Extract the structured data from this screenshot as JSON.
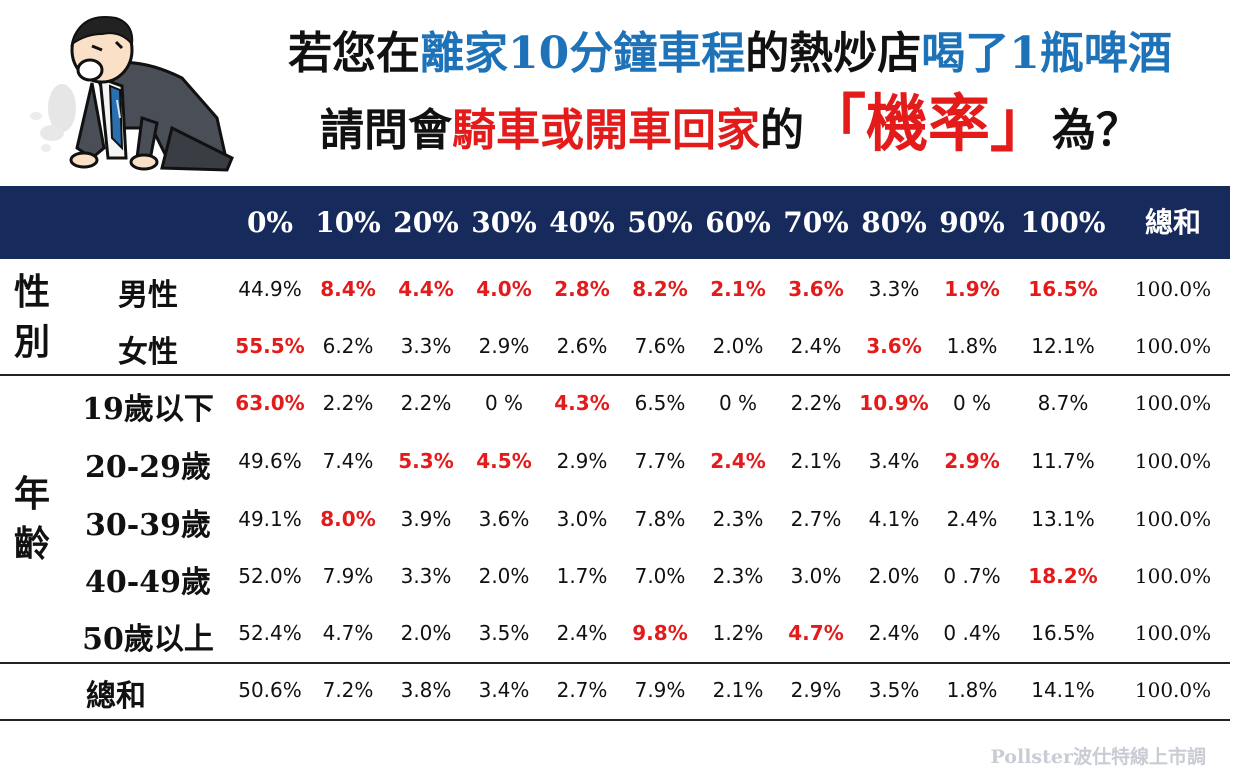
{
  "title": {
    "line1": [
      {
        "t": "若您在",
        "c": ""
      },
      {
        "t": "離家10分鐘車程",
        "c": "blue"
      },
      {
        "t": "的熱炒店",
        "c": ""
      },
      {
        "t": "喝了1瓶啤酒",
        "c": "blue"
      }
    ],
    "line2": [
      {
        "t": "請問會",
        "c": ""
      },
      {
        "t": "騎車或開車回家",
        "c": "red"
      },
      {
        "t": "的",
        "c": ""
      },
      {
        "t": "「機率」",
        "c": "red big"
      },
      {
        "t": "為？",
        "c": ""
      }
    ]
  },
  "colors": {
    "header_bg": "#162a5c",
    "highlight": "#e31b1b",
    "accent_blue": "#1e72b8"
  },
  "chart_data": {
    "type": "table",
    "columns": [
      "0%",
      "10%",
      "20%",
      "30%",
      "40%",
      "50%",
      "60%",
      "70%",
      "80%",
      "90%",
      "100%",
      "總和"
    ],
    "groups": [
      {
        "label": "性別",
        "rows": [
          0,
          1
        ]
      },
      {
        "label": "年齡",
        "rows": [
          2,
          3,
          4,
          5,
          6
        ]
      },
      {
        "label": "",
        "rows": [
          7
        ]
      }
    ],
    "rows": [
      {
        "label": "男性",
        "values": [
          "44.9%",
          "8.4%",
          "4.4%",
          "4.0%",
          "2.8%",
          "8.2%",
          "2.1%",
          "3.6%",
          "3.3%",
          "1.9%",
          "16.5%",
          "100.0%"
        ],
        "highlight": [
          1,
          2,
          3,
          4,
          5,
          6,
          7,
          9,
          10
        ]
      },
      {
        "label": "女性",
        "values": [
          "55.5%",
          "6.2%",
          "3.3%",
          "2.9%",
          "2.6%",
          "7.6%",
          "2.0%",
          "2.4%",
          "3.6%",
          "1.8%",
          "12.1%",
          "100.0%"
        ],
        "highlight": [
          0,
          8
        ]
      },
      {
        "label": "19歲以下",
        "values": [
          "63.0%",
          "2.2%",
          "2.2%",
          "0 %",
          "4.3%",
          "6.5%",
          "0 %",
          "2.2%",
          "10.9%",
          "0 %",
          "8.7%",
          "100.0%"
        ],
        "highlight": [
          0,
          4,
          8
        ]
      },
      {
        "label": "20-29歲",
        "values": [
          "49.6%",
          "7.4%",
          "5.3%",
          "4.5%",
          "2.9%",
          "7.7%",
          "2.4%",
          "2.1%",
          "3.4%",
          "2.9%",
          "11.7%",
          "100.0%"
        ],
        "highlight": [
          2,
          3,
          6,
          9
        ]
      },
      {
        "label": "30-39歲",
        "values": [
          "49.1%",
          "8.0%",
          "3.9%",
          "3.6%",
          "3.0%",
          "7.8%",
          "2.3%",
          "2.7%",
          "4.1%",
          "2.4%",
          "13.1%",
          "100.0%"
        ],
        "highlight": [
          1
        ]
      },
      {
        "label": "40-49歲",
        "values": [
          "52.0%",
          "7.9%",
          "3.3%",
          "2.0%",
          "1.7%",
          "7.0%",
          "2.3%",
          "3.0%",
          "2.0%",
          "0 .7%",
          "18.2%",
          "100.0%"
        ],
        "highlight": [
          10
        ]
      },
      {
        "label": "50歲以上",
        "values": [
          "52.4%",
          "4.7%",
          "2.0%",
          "3.5%",
          "2.4%",
          "9.8%",
          "1.2%",
          "4.7%",
          "2.4%",
          "0 .4%",
          "16.5%",
          "100.0%"
        ],
        "highlight": [
          5,
          7
        ]
      },
      {
        "label": "總和",
        "values": [
          "50.6%",
          "7.2%",
          "3.8%",
          "3.4%",
          "2.7%",
          "7.9%",
          "2.1%",
          "2.9%",
          "3.5%",
          "1.8%",
          "14.1%",
          "100.0%"
        ],
        "highlight": []
      }
    ]
  },
  "watermark": "Pollster波仕特線上市調"
}
